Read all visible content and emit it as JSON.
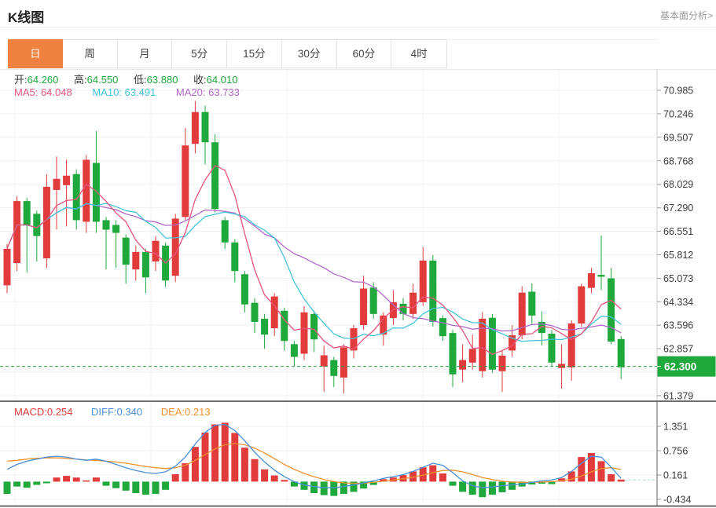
{
  "header": {
    "title": "K线图",
    "analysis_link": "基本面分析>"
  },
  "tabs": {
    "active_index": 0,
    "items": [
      {
        "label": "日"
      },
      {
        "label": "周"
      },
      {
        "label": "月"
      },
      {
        "label": "5分"
      },
      {
        "label": "15分"
      },
      {
        "label": "30分"
      },
      {
        "label": "60分"
      },
      {
        "label": "4时"
      }
    ]
  },
  "ohlc_legend": {
    "open_label": "开:",
    "open": "64.260",
    "high_label": "高:",
    "high": "64.550",
    "low_label": "低:",
    "low": "63.880",
    "close_label": "收:",
    "close": "64.010"
  },
  "ma_legend": {
    "ma5": "MA5: 64.048",
    "ma10": "MA10: 63.491",
    "ma20": "MA20: 63.733"
  },
  "macd_legend": {
    "macd": "MACD:0.254",
    "diff": "DIFF:0.340",
    "dea": "DEA:0.213"
  },
  "axis": {
    "price_ticks": [
      "70.985",
      "70.246",
      "69.507",
      "68.768",
      "68.029",
      "67.290",
      "66.551",
      "65.812",
      "65.073",
      "64.334",
      "63.596",
      "62.857",
      "62.118",
      "61.379"
    ],
    "macd_ticks": [
      "1.351",
      "0.756",
      "0.161",
      "-0.434"
    ],
    "current_price": "62.300"
  },
  "colors": {
    "up": "#e23b3b",
    "down": "#1fa83c",
    "ma5": "#e8557c",
    "ma10": "#45c3d9",
    "ma20": "#b168c9",
    "diff_line": "#4a90d9",
    "dea_line": "#f0912e",
    "active_tab": "#ef8240",
    "badge": "#1fa83c",
    "price_dash": "#2f9e44",
    "grid": "#f1f1f1",
    "axis_text": "#3a3a3a"
  },
  "chart_data": {
    "type": "candlestick+macd",
    "title": "K线图 (daily K-line with MA5/MA10/MA20 and MACD)",
    "legend_position": "top-left",
    "grid": true,
    "price_ylim": [
      61.28,
      71.65
    ],
    "price_tick_values": [
      70.985,
      70.246,
      69.507,
      68.768,
      68.029,
      67.29,
      66.551,
      65.812,
      65.073,
      64.334,
      63.596,
      62.857,
      62.118,
      61.379
    ],
    "current_price": 62.3,
    "ma_periods": [
      5,
      10,
      20
    ],
    "candles_ohlc": [
      [
        64.85,
        66.15,
        64.6,
        66.0
      ],
      [
        65.55,
        67.65,
        65.3,
        67.5
      ],
      [
        67.5,
        67.6,
        65.25,
        66.75
      ],
      [
        67.1,
        67.2,
        65.6,
        66.4
      ],
      [
        65.7,
        68.35,
        65.4,
        67.95
      ],
      [
        67.85,
        68.9,
        66.6,
        68.2
      ],
      [
        68.0,
        68.8,
        66.7,
        68.3
      ],
      [
        68.35,
        68.5,
        66.6,
        66.9
      ],
      [
        66.85,
        68.95,
        66.5,
        68.8
      ],
      [
        68.7,
        69.7,
        66.5,
        66.85
      ],
      [
        66.9,
        67.0,
        65.35,
        66.6
      ],
      [
        66.75,
        66.9,
        65.4,
        66.5
      ],
      [
        66.35,
        66.45,
        64.9,
        65.5
      ],
      [
        65.35,
        66.1,
        65.0,
        65.9
      ],
      [
        65.9,
        66.0,
        64.6,
        65.1
      ],
      [
        65.6,
        66.4,
        65.3,
        66.25
      ],
      [
        66.1,
        66.2,
        64.8,
        65.0
      ],
      [
        65.15,
        67.1,
        64.95,
        66.95
      ],
      [
        67.0,
        69.8,
        66.9,
        69.25
      ],
      [
        69.3,
        70.65,
        69.0,
        70.3
      ],
      [
        70.3,
        70.5,
        68.65,
        69.35
      ],
      [
        69.35,
        69.6,
        67.15,
        67.25
      ],
      [
        66.9,
        67.0,
        66.0,
        66.2
      ],
      [
        66.2,
        66.3,
        64.95,
        65.3
      ],
      [
        65.2,
        65.3,
        64.0,
        64.25
      ],
      [
        64.3,
        64.45,
        63.35,
        63.7
      ],
      [
        63.8,
        63.95,
        62.85,
        63.3
      ],
      [
        63.5,
        64.6,
        63.25,
        64.5
      ],
      [
        64.05,
        64.15,
        62.8,
        63.1
      ],
      [
        63.0,
        63.1,
        62.3,
        62.6
      ],
      [
        62.7,
        64.2,
        62.5,
        64.0
      ],
      [
        63.95,
        64.05,
        62.75,
        63.15
      ],
      [
        62.3,
        62.95,
        61.5,
        62.65
      ],
      [
        62.5,
        62.6,
        61.65,
        62.0
      ],
      [
        61.95,
        63.0,
        61.45,
        62.9
      ],
      [
        62.8,
        63.6,
        62.55,
        63.5
      ],
      [
        63.6,
        65.15,
        63.45,
        64.75
      ],
      [
        64.78,
        64.95,
        63.8,
        63.95
      ],
      [
        63.3,
        64.0,
        62.95,
        63.9
      ],
      [
        63.82,
        64.7,
        63.6,
        64.32
      ],
      [
        64.27,
        64.45,
        63.75,
        63.95
      ],
      [
        63.95,
        64.9,
        63.8,
        64.62
      ],
      [
        64.32,
        66.06,
        64.2,
        65.63
      ],
      [
        65.63,
        65.8,
        63.55,
        63.7
      ],
      [
        63.82,
        63.9,
        63.1,
        63.25
      ],
      [
        63.35,
        63.45,
        61.65,
        62.05
      ],
      [
        62.2,
        63.0,
        61.8,
        62.5
      ],
      [
        62.42,
        63.3,
        62.2,
        62.85
      ],
      [
        62.15,
        64.0,
        61.95,
        63.8
      ],
      [
        63.83,
        63.95,
        62.1,
        62.2
      ],
      [
        62.15,
        62.8,
        61.5,
        62.64
      ],
      [
        62.8,
        63.6,
        62.6,
        63.28
      ],
      [
        63.28,
        64.82,
        63.15,
        64.62
      ],
      [
        64.65,
        64.91,
        63.6,
        63.9
      ],
      [
        63.7,
        64.03,
        62.96,
        63.35
      ],
      [
        63.33,
        63.45,
        62.3,
        62.42
      ],
      [
        62.25,
        63.0,
        61.6,
        62.38
      ],
      [
        62.27,
        63.75,
        61.85,
        63.65
      ],
      [
        63.65,
        64.9,
        63.55,
        64.82
      ],
      [
        64.77,
        65.4,
        64.6,
        65.23
      ],
      [
        65.18,
        66.42,
        64.7,
        65.12
      ],
      [
        65.07,
        65.4,
        63.0,
        63.08
      ],
      [
        63.16,
        63.25,
        61.9,
        62.27
      ]
    ],
    "macd": {
      "ylim": [
        -0.63,
        1.97
      ],
      "tick_values": [
        1.351,
        0.756,
        0.161,
        -0.434
      ],
      "hist": [
        -0.3,
        -0.12,
        -0.15,
        -0.08,
        -0.04,
        0.1,
        0.14,
        0.1,
        0.03,
        0.1,
        -0.1,
        -0.16,
        -0.22,
        -0.28,
        -0.32,
        -0.3,
        -0.2,
        0.18,
        0.45,
        0.85,
        1.2,
        1.4,
        1.44,
        1.19,
        0.83,
        0.55,
        0.3,
        0.15,
        0.04,
        -0.12,
        -0.2,
        -0.28,
        -0.33,
        -0.35,
        -0.3,
        -0.25,
        -0.17,
        -0.08,
        0.06,
        0.1,
        0.16,
        0.25,
        0.35,
        0.4,
        0.2,
        -0.1,
        -0.25,
        -0.32,
        -0.38,
        -0.32,
        -0.26,
        -0.2,
        -0.12,
        -0.07,
        -0.05,
        -0.06,
        0.08,
        0.25,
        0.6,
        0.7,
        0.5,
        0.18,
        0.05
      ],
      "diff": [
        0.3,
        0.42,
        0.5,
        0.55,
        0.6,
        0.62,
        0.6,
        0.55,
        0.52,
        0.55,
        0.5,
        0.42,
        0.34,
        0.27,
        0.22,
        0.2,
        0.24,
        0.38,
        0.6,
        0.92,
        1.2,
        1.38,
        1.4,
        1.25,
        1.0,
        0.72,
        0.48,
        0.28,
        0.12,
        0.0,
        -0.08,
        -0.12,
        -0.15,
        -0.15,
        -0.12,
        -0.08,
        -0.03,
        0.02,
        0.08,
        0.12,
        0.17,
        0.25,
        0.35,
        0.45,
        0.4,
        0.22,
        0.02,
        -0.1,
        -0.15,
        -0.13,
        -0.1,
        -0.08,
        -0.06,
        -0.02,
        0.02,
        0.04,
        0.1,
        0.25,
        0.45,
        0.62,
        0.6,
        0.35,
        0.08
      ],
      "dea": [
        0.5,
        0.52,
        0.55,
        0.57,
        0.58,
        0.58,
        0.57,
        0.55,
        0.53,
        0.52,
        0.5,
        0.48,
        0.45,
        0.41,
        0.37,
        0.34,
        0.32,
        0.34,
        0.4,
        0.52,
        0.66,
        0.8,
        0.9,
        0.93,
        0.9,
        0.82,
        0.7,
        0.56,
        0.42,
        0.3,
        0.2,
        0.12,
        0.05,
        0.0,
        -0.03,
        -0.04,
        -0.04,
        -0.02,
        0.01,
        0.04,
        0.07,
        0.11,
        0.16,
        0.22,
        0.27,
        0.28,
        0.24,
        0.17,
        0.1,
        0.05,
        0.01,
        -0.01,
        -0.02,
        -0.02,
        -0.01,
        0.0,
        0.02,
        0.06,
        0.14,
        0.24,
        0.32,
        0.34,
        0.3
      ]
    }
  }
}
